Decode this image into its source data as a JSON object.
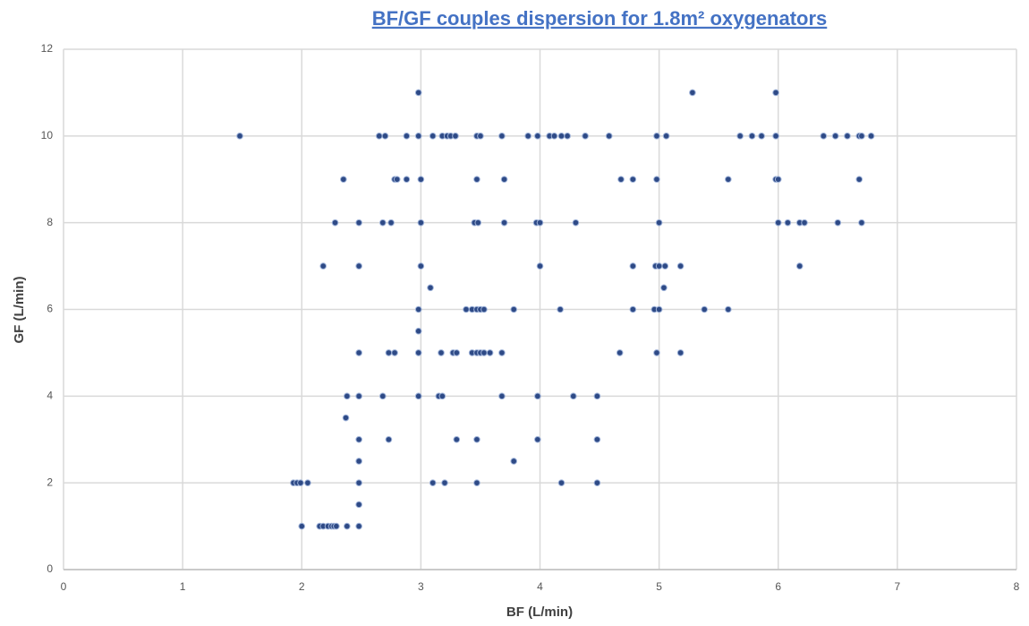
{
  "chart_data": {
    "type": "scatter",
    "title": "BF/GF couples dispersion for 1.8m² oxygenators",
    "x_label": "BF (L/min)",
    "y_label": "GF (L/min)",
    "color": "#2e4a86",
    "xlim": [
      0,
      8
    ],
    "xticks": [
      0,
      1,
      2,
      3,
      4,
      5,
      6,
      7,
      8
    ],
    "ylim": [
      0,
      12
    ],
    "yticks": [
      0,
      2,
      4,
      6,
      8,
      10,
      12
    ],
    "grid": true,
    "x": [
      1.48,
      2.65,
      2.7,
      2.88,
      2.98,
      3.1,
      3.18,
      3.22,
      3.25,
      3.29,
      3.47,
      3.5,
      3.68,
      3.9,
      3.98,
      4.08,
      4.12,
      4.18,
      4.23,
      4.38,
      4.58,
      4.98,
      5.06,
      5.68,
      5.78,
      5.86,
      5.98,
      6.38,
      6.48,
      6.58,
      6.68,
      6.7,
      6.78,
      2.98,
      5.28,
      5.98,
      2.35,
      2.78,
      2.8,
      2.88,
      3.0,
      3.47,
      3.7,
      4.68,
      4.78,
      4.98,
      5.58,
      5.98,
      6.0,
      6.68,
      2.28,
      2.48,
      2.68,
      2.75,
      3.0,
      3.45,
      3.48,
      3.7,
      3.97,
      4.0,
      4.3,
      5.0,
      6.0,
      6.08,
      6.18,
      6.22,
      6.5,
      6.7,
      2.18,
      2.48,
      3.0,
      4.0,
      4.78,
      4.97,
      5.0,
      5.05,
      5.18,
      6.18,
      3.08,
      5.04,
      2.98,
      3.38,
      3.43,
      3.47,
      3.5,
      3.53,
      3.78,
      4.17,
      4.78,
      4.96,
      5.0,
      5.38,
      5.58,
      2.98,
      2.48,
      2.73,
      2.78,
      2.98,
      3.17,
      3.27,
      3.3,
      3.43,
      3.47,
      3.5,
      3.53,
      3.58,
      3.68,
      4.67,
      4.98,
      5.18,
      2.38,
      2.48,
      2.68,
      2.98,
      3.15,
      3.18,
      3.68,
      3.98,
      4.28,
      4.48,
      2.37,
      2.48,
      2.73,
      3.3,
      3.47,
      3.98,
      4.48,
      2.48,
      3.78,
      1.93,
      1.96,
      1.99,
      2.05,
      2.48,
      3.1,
      3.2,
      3.47,
      4.18,
      4.48,
      2.48,
      2.0,
      2.15,
      2.18,
      2.22,
      2.25,
      2.27,
      2.29,
      2.38,
      2.48
    ],
    "values": [
      10,
      10,
      10,
      10,
      10,
      10,
      10,
      10,
      10,
      10,
      10,
      10,
      10,
      10,
      10,
      10,
      10,
      10,
      10,
      10,
      10,
      10,
      10,
      10,
      10,
      10,
      10,
      10,
      10,
      10,
      10,
      10,
      10,
      11,
      11,
      11,
      9,
      9,
      9,
      9,
      9,
      9,
      9,
      9,
      9,
      9,
      9,
      9,
      9,
      9,
      8,
      8,
      8,
      8,
      8,
      8,
      8,
      8,
      8,
      8,
      8,
      8,
      8,
      8,
      8,
      8,
      8,
      8,
      7,
      7,
      7,
      7,
      7,
      7,
      7,
      7,
      7,
      7,
      6.5,
      6.5,
      6,
      6,
      6,
      6,
      6,
      6,
      6,
      6,
      6,
      6,
      6,
      6,
      6,
      5.5,
      5,
      5,
      5,
      5,
      5,
      5,
      5,
      5,
      5,
      5,
      5,
      5,
      5,
      5,
      5,
      5,
      4,
      4,
      4,
      4,
      4,
      4,
      4,
      4,
      4,
      4,
      3.5,
      3,
      3,
      3,
      3,
      3,
      3,
      2.5,
      2.5,
      2,
      2,
      2,
      2,
      2,
      2,
      2,
      2,
      2,
      2,
      1.5,
      1,
      1,
      1,
      1,
      1,
      1,
      1,
      1,
      1
    ]
  }
}
